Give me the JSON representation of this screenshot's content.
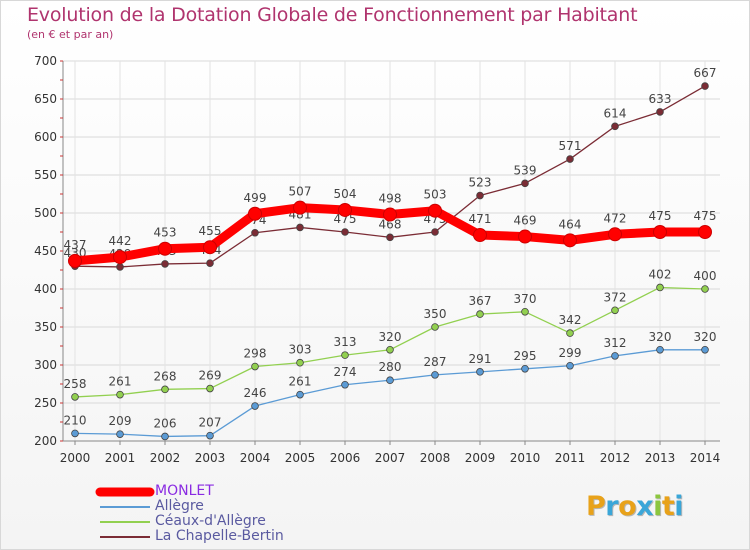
{
  "chart_data": {
    "type": "line",
    "title": "Evolution de la Dotation Globale de Fonctionnement par Habitant",
    "subtitle": "(en € et par an)",
    "x": [
      "2000",
      "2001",
      "2002",
      "2003",
      "2004",
      "2005",
      "2006",
      "2007",
      "2008",
      "2009",
      "2010",
      "2011",
      "2012",
      "2013",
      "2014"
    ],
    "ylim": [
      200,
      700
    ],
    "yticks": [
      "200",
      "250",
      "300",
      "350",
      "400",
      "450",
      "500",
      "550",
      "600",
      "650",
      "700"
    ],
    "grid": true,
    "legend_position": "bottom-left",
    "series": [
      {
        "name": "MONLET",
        "color": "#ff0000",
        "values": [
          437,
          442,
          453,
          455,
          499,
          507,
          504,
          498,
          503,
          471,
          469,
          464,
          472,
          475,
          475
        ]
      },
      {
        "name": "Allègre",
        "color": "#5b9bd5",
        "values": [
          210,
          209,
          206,
          207,
          246,
          261,
          274,
          280,
          287,
          291,
          295,
          299,
          312,
          320,
          320
        ]
      },
      {
        "name": "Céaux-d'Allègre",
        "color": "#92d050",
        "values": [
          258,
          261,
          268,
          269,
          298,
          303,
          313,
          320,
          350,
          367,
          370,
          342,
          372,
          402,
          400
        ]
      },
      {
        "name": "La Chapelle-Bertin",
        "color": "#7b2c35",
        "values": [
          430,
          429,
          433,
          434,
          474,
          481,
          475,
          468,
          475,
          523,
          539,
          571,
          614,
          633,
          667
        ]
      }
    ]
  },
  "logo": {
    "letters": [
      "P",
      "r",
      "o",
      "x",
      "i",
      "t",
      "i"
    ],
    "colors": [
      "#e8a21a",
      "#3aa6d8",
      "#e8a21a",
      "#3aa6d8",
      "#8cc63f",
      "#e8a21a",
      "#3aa6d8"
    ]
  }
}
